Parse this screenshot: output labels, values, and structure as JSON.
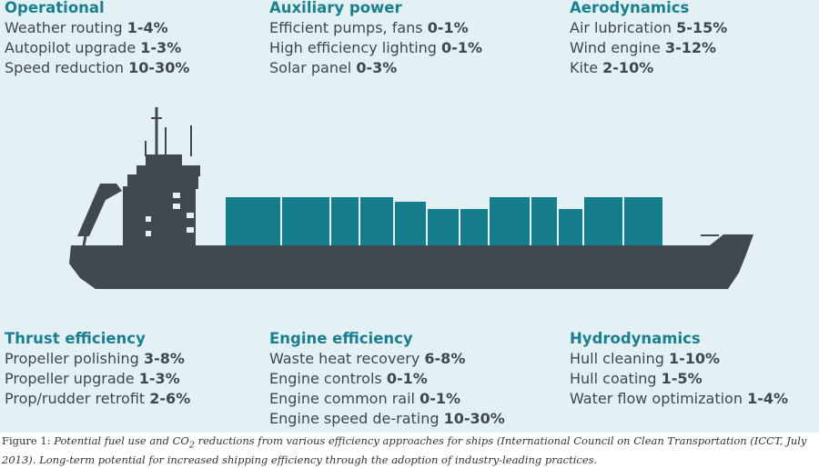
{
  "colors": {
    "background": "#e3f1f4",
    "heading": "#1a7f91",
    "text": "#3d4750",
    "ship_hull": "#414950",
    "container": "#157d8c"
  },
  "groups": {
    "operational": {
      "title": "Operational",
      "items": [
        {
          "label": "Weather routing",
          "value": "1-4%"
        },
        {
          "label": "Autopilot upgrade",
          "value": "1-3%"
        },
        {
          "label": "Speed reduction",
          "value": "10-30%"
        }
      ]
    },
    "auxiliary": {
      "title": "Auxiliary power",
      "items": [
        {
          "label": "Efficient pumps, fans",
          "value": "0-1%"
        },
        {
          "label": "High efficiency lighting",
          "value": "0-1%"
        },
        {
          "label": "Solar panel",
          "value": "0-3%"
        }
      ]
    },
    "aerodynamics": {
      "title": "Aerodynamics",
      "items": [
        {
          "label": "Air lubrication",
          "value": "5-15%"
        },
        {
          "label": "Wind engine",
          "value": "3-12%"
        },
        {
          "label": "Kite",
          "value": "2-10%"
        }
      ]
    },
    "thrust": {
      "title": "Thrust efficiency",
      "items": [
        {
          "label": "Propeller polishing",
          "value": "3-8%"
        },
        {
          "label": "Propeller upgrade",
          "value": "1-3%"
        },
        {
          "label": "Prop/rudder retrofit",
          "value": "2-6%"
        }
      ]
    },
    "engine": {
      "title": "Engine efficiency",
      "items": [
        {
          "label": "Waste heat recovery",
          "value": "6-8%"
        },
        {
          "label": "Engine controls",
          "value": "0-1%"
        },
        {
          "label": "Engine common rail",
          "value": "0-1%"
        },
        {
          "label": "Engine speed de-rating",
          "value": "10-30%"
        }
      ]
    },
    "hydrodynamics": {
      "title": "Hydrodynamics",
      "items": [
        {
          "label": "Hull cleaning",
          "value": "1-10%"
        },
        {
          "label": "Hull coating",
          "value": "1-5%"
        },
        {
          "label": "Water flow optimization",
          "value": "1-4%"
        }
      ]
    }
  },
  "caption": {
    "label": "Figure 1:",
    "body_1": "Potential fuel use and CO",
    "subscript": "2",
    "body_2": " reductions from various efficiency approaches for ships (International Council on Clean Transportation (ICCT, July 2013). Long-term potential for increased shipping efficiency through the adoption of industry-leading practices."
  }
}
